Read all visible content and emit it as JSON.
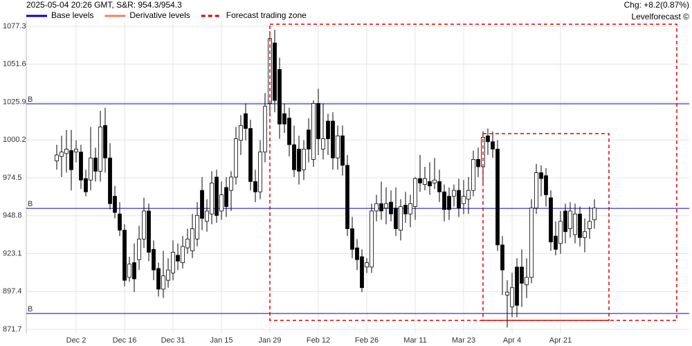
{
  "chart_data": {
    "type": "candlestick",
    "header": "2025-05-04 20:26 GMT,  S&R: 954.3/954.3",
    "change": "Chg: +8.2(0.87%)",
    "change_color": "#008800",
    "credit": "Levelforecast ©",
    "legend": [
      {
        "name": "Base levels",
        "color": "#0000cc",
        "style": "solid"
      },
      {
        "name": "Derivative levels",
        "color": "#f08060",
        "style": "solid"
      },
      {
        "name": "Forecast trading zone",
        "color": "#dd0000",
        "style": "dashed"
      }
    ],
    "categories": [
      null,
      null,
      null,
      null,
      "Dec 2",
      null,
      null,
      null,
      null,
      null,
      null,
      null,
      null,
      null,
      "Dec 16",
      null,
      null,
      null,
      null,
      null,
      null,
      null,
      null,
      null,
      "Dec 31",
      null,
      null,
      null,
      null,
      null,
      null,
      null,
      null,
      null,
      "Jan 15",
      null,
      null,
      null,
      null,
      null,
      null,
      null,
      null,
      null,
      "Jan 29",
      null,
      null,
      null,
      null,
      null,
      null,
      null,
      null,
      null,
      "Feb 12",
      null,
      null,
      null,
      null,
      null,
      null,
      null,
      null,
      null,
      "Feb 26",
      null,
      null,
      null,
      null,
      null,
      null,
      null,
      null,
      null,
      "Mar 11",
      null,
      null,
      null,
      null,
      null,
      null,
      null,
      null,
      null,
      "Mar 23",
      null,
      null,
      null,
      null,
      null,
      null,
      null,
      null,
      null,
      "Apr 4",
      null,
      null,
      null,
      null,
      null,
      null,
      null,
      null,
      null,
      "Apr 21",
      null,
      null,
      null,
      null,
      null,
      null,
      null
    ],
    "open": [
      986,
      989,
      991,
      993,
      992,
      992,
      974,
      973,
      988,
      979,
      1010,
      988,
      962,
      950,
      939,
      907,
      917,
      919,
      933,
      952,
      926,
      913,
      899,
      905,
      910,
      922,
      917,
      927,
      925,
      933,
      966,
      945,
      950,
      975,
      952,
      968,
      966,
      975,
      1000,
      1018,
      1008,
      972,
      965,
      992,
      1025,
      1066,
      1048,
      1018,
      1015,
      997,
      994,
      980,
      1007,
      987,
      1025,
      994,
      1013,
      1013,
      988,
      1003,
      983,
      940,
      927,
      921,
      914,
      914,
      952,
      957,
      954,
      958,
      954,
      939,
      956,
      950,
      955,
      974,
      970,
      972,
      971,
      972,
      965,
      962,
      962,
      966,
      957,
      960,
      966,
      987,
      982,
      1003,
      999,
      994,
      929,
      895,
      887,
      914,
      914,
      902,
      907,
      954,
      978,
      976,
      961,
      935,
      930,
      952,
      940,
      936,
      950,
      934,
      940,
      946
    ],
    "high": [
      997,
      1003,
      1007,
      1007,
      1000,
      997,
      980,
      1009,
      995,
      1020,
      1022,
      998,
      969,
      958,
      943,
      921,
      930,
      942,
      961,
      957,
      932,
      917,
      925,
      920,
      932,
      930,
      935,
      940,
      950,
      958,
      975,
      960,
      979,
      980,
      972,
      975,
      979,
      1009,
      1017,
      1025,
      1014,
      980,
      1000,
      1032,
      1074,
      1075,
      1056,
      1025,
      1022,
      1010,
      1003,
      1000,
      1015,
      1027,
      1035,
      1025,
      1018,
      1019,
      1010,
      1010,
      990,
      948,
      933,
      926,
      920,
      957,
      963,
      972,
      968,
      966,
      968,
      960,
      965,
      963,
      975,
      990,
      982,
      985,
      988,
      980,
      970,
      968,
      970,
      974,
      973,
      975,
      993,
      995,
      1006,
      1008,
      1006,
      1000,
      935,
      905,
      910,
      920,
      926,
      920,
      960,
      984,
      983,
      981,
      966,
      945,
      952,
      957,
      958,
      957,
      955,
      947,
      955,
      960
    ],
    "low": [
      980,
      975,
      978,
      966,
      985,
      967,
      962,
      966,
      972,
      972,
      978,
      953,
      947,
      935,
      901,
      904,
      897,
      912,
      927,
      918,
      905,
      894,
      893,
      900,
      905,
      912,
      913,
      923,
      920,
      928,
      939,
      938,
      943,
      944,
      946,
      948,
      952,
      970,
      990,
      1000,
      966,
      958,
      960,
      985,
      1018,
      1019,
      1001,
      1005,
      989,
      975,
      970,
      973,
      985,
      982,
      990,
      987,
      990,
      980,
      980,
      976,
      935,
      920,
      912,
      897,
      910,
      910,
      945,
      946,
      943,
      945,
      935,
      932,
      944,
      941,
      946,
      965,
      966,
      963,
      967,
      958,
      945,
      946,
      955,
      948,
      950,
      950,
      962,
      975,
      970,
      990,
      988,
      925,
      895,
      873,
      880,
      880,
      887,
      893,
      903,
      950,
      962,
      955,
      925,
      922,
      923,
      930,
      934,
      930,
      928,
      924,
      933,
      940
    ],
    "close": [
      990,
      992,
      994,
      980,
      994,
      973,
      965,
      988,
      979,
      1009,
      988,
      957,
      951,
      939,
      905,
      916,
      906,
      933,
      952,
      924,
      912,
      899,
      908,
      912,
      924,
      918,
      928,
      933,
      940,
      949,
      947,
      952,
      971,
      949,
      963,
      955,
      975,
      1001,
      1010,
      1008,
      972,
      965,
      992,
      1023,
      1069,
      1027,
      1011,
      1011,
      997,
      980,
      979,
      994,
      994,
      1025,
      1001,
      1001,
      1001,
      988,
      1003,
      983,
      940,
      926,
      919,
      900,
      917,
      952,
      957,
      952,
      957,
      950,
      940,
      955,
      950,
      957,
      974,
      971,
      974,
      969,
      973,
      965,
      953,
      953,
      966,
      954,
      962,
      966,
      987,
      982,
      1002,
      999,
      994,
      929,
      912,
      897,
      900,
      888,
      903,
      907,
      954,
      978,
      974,
      963,
      931,
      926,
      945,
      938,
      952,
      950,
      934,
      938,
      945,
      954
    ],
    "up_color": "#ffffff",
    "down_color": "#000000",
    "levels": [
      {
        "label": "B",
        "value": 1024.7
      },
      {
        "label": "B",
        "value": 953.8
      },
      {
        "label": "B",
        "value": 882.5
      }
    ],
    "zones": [
      {
        "x": [
          44,
          128
        ],
        "y": [
          877.8,
          1078.7
        ]
      },
      {
        "x": [
          88,
          114
        ],
        "y": [
          877.8,
          1004.5
        ]
      }
    ],
    "ylim": [
      871.7,
      1077.3
    ],
    "yticks": [
      1077.3,
      1051.6,
      1025.9,
      1000.2,
      974.5,
      948.8,
      923.1,
      897.4,
      871.7
    ],
    "grid": true
  }
}
